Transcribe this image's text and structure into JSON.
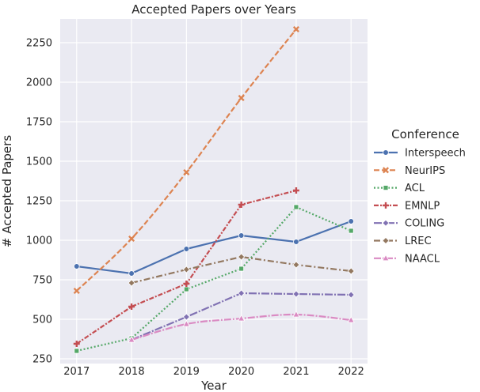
{
  "chart_data": {
    "type": "line",
    "title": "Accepted Papers over Years",
    "xlabel": "Year",
    "ylabel": "# Accepted Papers",
    "x": [
      2017,
      2018,
      2019,
      2020,
      2021,
      2022
    ],
    "xlim": [
      2016.7,
      2022.3
    ],
    "ylim": [
      220,
      2400
    ],
    "yticks": [
      250,
      500,
      750,
      1000,
      1250,
      1500,
      1750,
      2000,
      2250
    ],
    "grid": true,
    "legend": {
      "title": "Conference",
      "placement": "right"
    },
    "series": [
      {
        "name": "Interspeech",
        "color": "#4c72b0",
        "dash": "",
        "marker": "circle",
        "values": [
          835,
          790,
          945,
          1030,
          990,
          1120
        ]
      },
      {
        "name": "NeurIPS",
        "color": "#dd8452",
        "dash": "7,3",
        "marker": "x",
        "values": [
          680,
          1010,
          1430,
          1900,
          2335,
          null
        ]
      },
      {
        "name": "ACL",
        "color": "#55a868",
        "dash": "2,2.5",
        "marker": "square",
        "values": [
          300,
          380,
          690,
          820,
          1210,
          1060
        ]
      },
      {
        "name": "EMNLP",
        "color": "#c44e52",
        "dash": "6,2,2,2",
        "marker": "plus",
        "values": [
          345,
          580,
          725,
          1225,
          1315,
          null
        ]
      },
      {
        "name": "COLING",
        "color": "#8172b3",
        "dash": "10,2,2,2",
        "marker": "diamond",
        "values": [
          null,
          370,
          515,
          665,
          660,
          655
        ]
      },
      {
        "name": "LREC",
        "color": "#937860",
        "dash": "8,3,2,3",
        "marker": "diamond",
        "values": [
          null,
          730,
          815,
          895,
          845,
          805
        ]
      },
      {
        "name": "NAACL",
        "color": "#da8bc3",
        "dash": "9,2,2,2",
        "marker": "triangle",
        "values": [
          null,
          370,
          470,
          505,
          530,
          495
        ]
      }
    ]
  }
}
